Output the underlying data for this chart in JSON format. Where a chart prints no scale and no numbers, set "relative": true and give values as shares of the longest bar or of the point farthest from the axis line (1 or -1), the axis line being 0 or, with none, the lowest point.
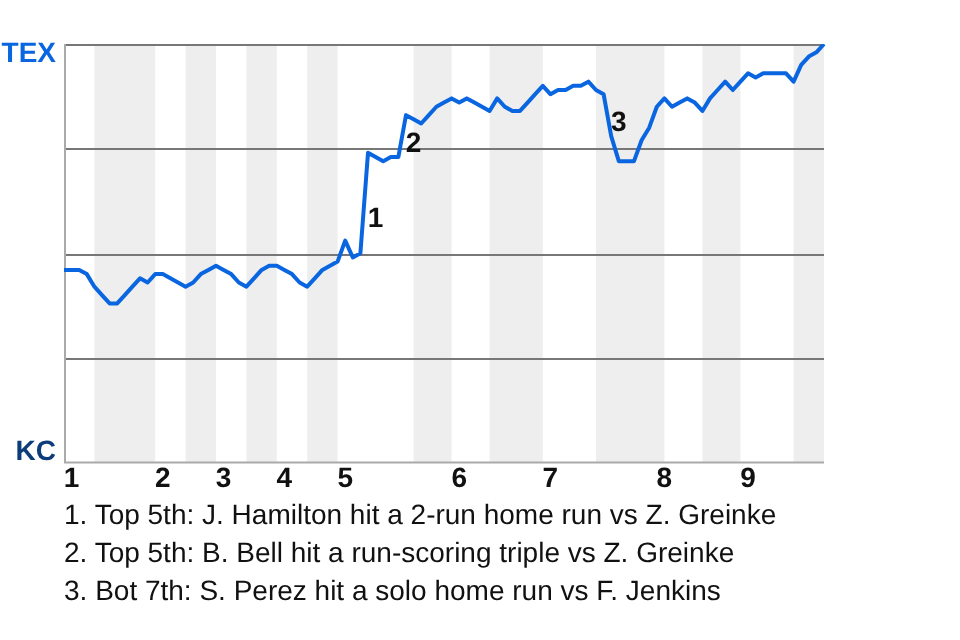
{
  "chart_data": {
    "type": "line",
    "relative": true,
    "categories": [
      null,
      "1",
      null,
      null,
      null,
      null,
      null,
      null,
      null,
      null,
      null,
      null,
      null,
      "2",
      null,
      null,
      null,
      null,
      null,
      null,
      null,
      "3",
      null,
      null,
      null,
      null,
      null,
      null,
      null,
      "4",
      null,
      null,
      null,
      null,
      null,
      null,
      null,
      "5",
      null,
      null,
      null,
      null,
      null,
      null,
      null,
      null,
      null,
      null,
      null,
      null,
      null,
      null,
      "6",
      null,
      null,
      null,
      null,
      null,
      null,
      null,
      null,
      null,
      null,
      null,
      "7",
      null,
      null,
      null,
      null,
      null,
      null,
      null,
      null,
      null,
      null,
      null,
      null,
      null,
      null,
      "8",
      null,
      null,
      null,
      null,
      null,
      null,
      null,
      null,
      null,
      null,
      "9",
      null,
      null,
      null,
      null,
      null,
      null,
      null,
      null,
      null,
      null
    ],
    "series": [
      {
        "color": "#0a66e0",
        "values": [
          0.46,
          0.46,
          0.46,
          0.45,
          0.42,
          0.4,
          0.38,
          0.38,
          0.4,
          0.42,
          0.44,
          0.43,
          0.45,
          0.45,
          0.44,
          0.43,
          0.42,
          0.43,
          0.45,
          0.46,
          0.47,
          0.46,
          0.45,
          0.43,
          0.42,
          0.44,
          0.46,
          0.47,
          0.47,
          0.46,
          0.45,
          0.43,
          0.42,
          0.44,
          0.46,
          0.47,
          0.48,
          0.53,
          0.49,
          0.5,
          0.74,
          0.73,
          0.72,
          0.73,
          0.73,
          0.83,
          0.82,
          0.81,
          0.83,
          0.85,
          0.86,
          0.87,
          0.86,
          0.87,
          0.86,
          0.85,
          0.84,
          0.87,
          0.85,
          0.84,
          0.84,
          0.86,
          0.88,
          0.9,
          0.88,
          0.89,
          0.89,
          0.9,
          0.9,
          0.91,
          0.89,
          0.88,
          0.78,
          0.72,
          0.72,
          0.72,
          0.77,
          0.8,
          0.85,
          0.87,
          0.85,
          0.86,
          0.87,
          0.86,
          0.84,
          0.87,
          0.89,
          0.91,
          0.89,
          0.91,
          0.93,
          0.92,
          0.93,
          0.93,
          0.93,
          0.93,
          0.91,
          0.95,
          0.97,
          0.98,
          1.0
        ]
      }
    ],
    "grid": "y",
    "marker": "none",
    "line_style": "solid",
    "legend": false,
    "annotations": [
      "TEX",
      "KC",
      "1",
      "2",
      "3",
      "1. Top 5th: J. Hamilton hit a 2-run home run vs Z. Greinke",
      "2. Top 5th: B. Bell hit a run-scoring triple vs Z. Greinke",
      "3. Bot 7th: S. Perez hit a solo home run vs F. Jenkins"
    ]
  }
}
